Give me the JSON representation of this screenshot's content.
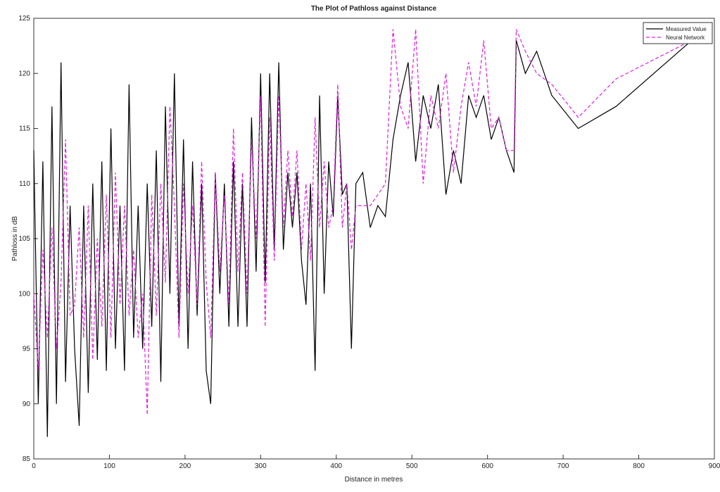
{
  "chart_data": {
    "type": "line",
    "title": "The Plot of Pathloss against Distance",
    "x_label": "Distance in metres",
    "y_label": "Pathloss in dB",
    "x": [
      0,
      6,
      12,
      18,
      24,
      30,
      36,
      42,
      48,
      54,
      60,
      66,
      72,
      78,
      84,
      90,
      96,
      102,
      108,
      114,
      120,
      126,
      132,
      138,
      144,
      150,
      156,
      162,
      168,
      174,
      180,
      186,
      192,
      198,
      204,
      210,
      216,
      222,
      228,
      234,
      240,
      246,
      252,
      258,
      264,
      270,
      276,
      282,
      288,
      294,
      300,
      306,
      312,
      318,
      324,
      330,
      336,
      342,
      348,
      354,
      360,
      366,
      372,
      378,
      384,
      390,
      396,
      402,
      408,
      414,
      420,
      426,
      435,
      445,
      455,
      465,
      475,
      485,
      495,
      505,
      515,
      525,
      535,
      545,
      555,
      565,
      575,
      585,
      595,
      605,
      615,
      625,
      635,
      638,
      650,
      665,
      685,
      720,
      770,
      870
    ],
    "series": [
      {
        "name": "Measured Value",
        "color": "#000000",
        "dashed": false,
        "values": [
          113,
          90,
          112,
          87,
          117,
          90,
          121,
          92,
          108,
          95,
          88,
          108,
          91,
          110,
          94,
          112,
          93,
          115,
          95,
          108,
          93,
          119,
          96,
          108,
          95,
          110,
          97,
          113,
          92,
          117,
          100,
          120,
          97,
          114,
          95,
          112,
          98,
          110,
          93,
          90,
          111,
          100,
          110,
          97,
          112,
          97,
          110,
          97,
          116,
          102,
          120,
          101,
          120,
          104,
          121,
          104,
          111,
          106,
          111,
          103,
          99,
          110,
          93,
          118,
          100,
          112,
          107,
          118,
          109,
          110,
          95,
          110,
          111,
          106,
          108,
          107,
          114,
          118,
          121,
          112,
          118,
          115,
          119,
          109,
          113,
          110,
          118,
          116,
          118,
          114,
          116,
          113,
          111,
          123,
          120,
          122,
          118,
          115,
          117,
          123
        ]
      },
      {
        "name": "Neural Network",
        "color": "#e020e0",
        "dashed": true,
        "values": [
          100,
          93,
          104,
          96,
          106,
          95,
          101,
          114,
          98,
          99,
          106,
          96,
          108,
          94,
          105,
          97,
          109,
          96,
          111,
          99,
          108,
          98,
          104,
          96,
          100,
          89,
          109,
          98,
          110,
          101,
          117,
          108,
          96,
          110,
          100,
          108,
          99,
          112,
          101,
          96,
          111,
          102,
          109,
          99,
          115,
          102,
          111,
          100,
          114,
          105,
          118,
          97,
          116,
          103,
          118,
          106,
          113,
          107,
          113,
          104,
          110,
          103,
          116,
          106,
          112,
          106,
          108,
          119,
          106,
          110,
          104,
          108,
          108,
          108,
          109,
          110,
          124,
          117,
          115,
          124,
          110,
          118,
          115,
          120,
          111,
          117,
          121,
          117,
          123,
          115,
          116,
          113,
          113,
          124,
          122,
          120,
          119,
          116,
          119.5,
          123
        ]
      }
    ],
    "xlim": [
      0,
      900
    ],
    "xticks": [
      0,
      100,
      200,
      300,
      400,
      500,
      600,
      700,
      800,
      900
    ],
    "ylim": [
      85,
      125
    ],
    "yticks": [
      85,
      90,
      95,
      100,
      105,
      110,
      115,
      120,
      125
    ],
    "legend": "upper right",
    "grid": false
  }
}
